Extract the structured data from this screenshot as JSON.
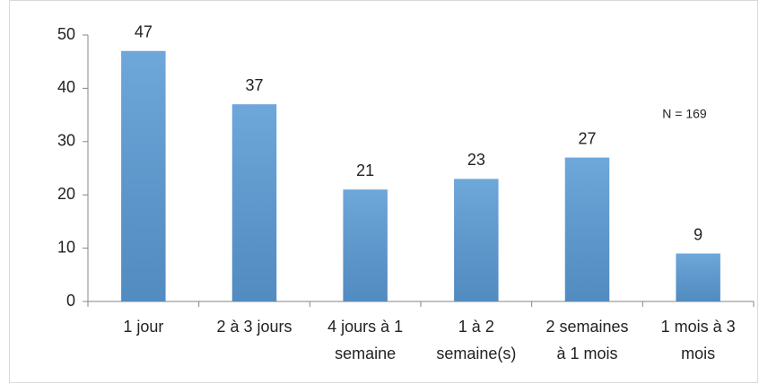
{
  "chart_data": {
    "type": "bar",
    "categories": [
      "1 jour",
      "2 à 3 jours",
      "4  jours à 1\nsemaine",
      "1 à 2\nsemaine(s)",
      "2 semaines\nà 1 mois",
      "1 mois à 3\nmois"
    ],
    "values": [
      47,
      37,
      21,
      23,
      27,
      9
    ],
    "color": "#5b9bd5",
    "ylim": [
      0,
      50
    ],
    "yticks": [
      0,
      10,
      20,
      30,
      40,
      50
    ],
    "annotation": "N = 169",
    "data_labels": true
  }
}
